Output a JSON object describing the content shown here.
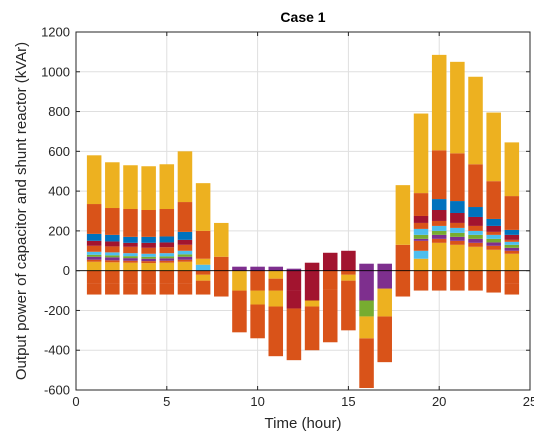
{
  "chart_data": {
    "type": "bar",
    "stacked": true,
    "title": "Case 1",
    "xlabel": "Time (hour)",
    "ylabel": "Output power of capacitor and shunt reactor (kVAr)",
    "xlim": [
      0,
      25
    ],
    "ylim": [
      -600,
      1200
    ],
    "xticks": [
      0,
      5,
      10,
      15,
      20,
      25
    ],
    "yticks": [
      -600,
      -400,
      -200,
      0,
      200,
      400,
      600,
      800,
      1000,
      1200
    ],
    "grid": true,
    "colors": [
      "#edb120",
      "#d95319",
      "#0072bd",
      "#a2142f",
      "#4dbeee",
      "#77ac30",
      "#7e2f8e"
    ],
    "bars": [
      {
        "x": 1,
        "segments": [
          [
            -120,
            -65,
            1
          ],
          [
            -65,
            0,
            1
          ],
          [
            0,
            45,
            0
          ],
          [
            45,
            55,
            1
          ],
          [
            55,
            70,
            6
          ],
          [
            70,
            80,
            5
          ],
          [
            80,
            95,
            4
          ],
          [
            95,
            125,
            1
          ],
          [
            125,
            150,
            3
          ],
          [
            150,
            185,
            2
          ],
          [
            185,
            335,
            1
          ],
          [
            335,
            580,
            0
          ]
        ]
      },
      {
        "x": 2,
        "segments": [
          [
            -120,
            -65,
            1
          ],
          [
            -65,
            0,
            1
          ],
          [
            0,
            42,
            0
          ],
          [
            42,
            52,
            1
          ],
          [
            52,
            67,
            6
          ],
          [
            67,
            77,
            5
          ],
          [
            77,
            92,
            4
          ],
          [
            92,
            122,
            1
          ],
          [
            122,
            147,
            3
          ],
          [
            147,
            180,
            2
          ],
          [
            180,
            315,
            1
          ],
          [
            315,
            545,
            0
          ]
        ]
      },
      {
        "x": 3,
        "segments": [
          [
            -120,
            -65,
            1
          ],
          [
            -65,
            0,
            1
          ],
          [
            0,
            40,
            0
          ],
          [
            40,
            50,
            1
          ],
          [
            50,
            63,
            6
          ],
          [
            63,
            73,
            5
          ],
          [
            73,
            88,
            4
          ],
          [
            88,
            120,
            1
          ],
          [
            120,
            140,
            3
          ],
          [
            140,
            170,
            2
          ],
          [
            170,
            310,
            1
          ],
          [
            310,
            530,
            0
          ]
        ]
      },
      {
        "x": 4,
        "segments": [
          [
            -120,
            -65,
            1
          ],
          [
            -65,
            0,
            1
          ],
          [
            0,
            38,
            0
          ],
          [
            38,
            48,
            1
          ],
          [
            48,
            60,
            6
          ],
          [
            60,
            70,
            5
          ],
          [
            70,
            85,
            4
          ],
          [
            85,
            115,
            1
          ],
          [
            115,
            140,
            3
          ],
          [
            140,
            170,
            2
          ],
          [
            170,
            305,
            1
          ],
          [
            305,
            525,
            0
          ]
        ]
      },
      {
        "x": 5,
        "segments": [
          [
            -120,
            -65,
            1
          ],
          [
            -65,
            0,
            1
          ],
          [
            0,
            40,
            0
          ],
          [
            40,
            50,
            1
          ],
          [
            50,
            62,
            6
          ],
          [
            62,
            72,
            5
          ],
          [
            72,
            88,
            4
          ],
          [
            88,
            118,
            1
          ],
          [
            118,
            142,
            3
          ],
          [
            142,
            172,
            2
          ],
          [
            172,
            310,
            1
          ],
          [
            310,
            535,
            0
          ]
        ]
      },
      {
        "x": 6,
        "segments": [
          [
            -120,
            -65,
            1
          ],
          [
            -65,
            0,
            1
          ],
          [
            0,
            45,
            0
          ],
          [
            45,
            55,
            1
          ],
          [
            55,
            70,
            6
          ],
          [
            70,
            82,
            5
          ],
          [
            82,
            100,
            4
          ],
          [
            100,
            130,
            1
          ],
          [
            130,
            155,
            3
          ],
          [
            155,
            195,
            2
          ],
          [
            195,
            345,
            1
          ],
          [
            345,
            600,
            0
          ]
        ]
      },
      {
        "x": 7,
        "segments": [
          [
            -120,
            -50,
            1
          ],
          [
            -50,
            -20,
            0
          ],
          [
            -20,
            0,
            1
          ],
          [
            0,
            30,
            4
          ],
          [
            30,
            60,
            0
          ],
          [
            60,
            200,
            1
          ],
          [
            200,
            440,
            0
          ]
        ]
      },
      {
        "x": 8,
        "segments": [
          [
            -130,
            0,
            1
          ],
          [
            0,
            70,
            1
          ],
          [
            70,
            240,
            0
          ]
        ]
      },
      {
        "x": 9,
        "segments": [
          [
            -310,
            -100,
            1
          ],
          [
            -100,
            0,
            0
          ],
          [
            0,
            20,
            6
          ]
        ]
      },
      {
        "x": 10,
        "segments": [
          [
            -340,
            -170,
            1
          ],
          [
            -170,
            -100,
            0
          ],
          [
            -100,
            0,
            1
          ],
          [
            0,
            20,
            6
          ]
        ]
      },
      {
        "x": 11,
        "segments": [
          [
            -430,
            -180,
            1
          ],
          [
            -180,
            -100,
            0
          ],
          [
            -100,
            -40,
            1
          ],
          [
            -40,
            0,
            0
          ],
          [
            0,
            20,
            6
          ]
        ]
      },
      {
        "x": 12,
        "segments": [
          [
            -450,
            -190,
            1
          ],
          [
            -190,
            -100,
            3
          ],
          [
            -100,
            0,
            3
          ],
          [
            0,
            10,
            6
          ]
        ]
      },
      {
        "x": 13,
        "segments": [
          [
            -400,
            -180,
            1
          ],
          [
            -180,
            -150,
            0
          ],
          [
            -150,
            0,
            3
          ],
          [
            0,
            40,
            3
          ]
        ]
      },
      {
        "x": 14,
        "segments": [
          [
            -360,
            -95,
            1
          ],
          [
            -95,
            0,
            1
          ],
          [
            0,
            90,
            3
          ]
        ]
      },
      {
        "x": 15,
        "segments": [
          [
            -300,
            -150,
            1
          ],
          [
            -150,
            -50,
            1
          ],
          [
            -50,
            -20,
            0
          ],
          [
            -20,
            0,
            1
          ],
          [
            0,
            100,
            3
          ]
        ]
      },
      {
        "x": 16,
        "segments": [
          [
            -590,
            -340,
            1
          ],
          [
            -340,
            -230,
            0
          ],
          [
            -230,
            -150,
            5
          ],
          [
            -150,
            0,
            6
          ],
          [
            0,
            35,
            6
          ]
        ]
      },
      {
        "x": 17,
        "segments": [
          [
            -460,
            -230,
            1
          ],
          [
            -230,
            -90,
            0
          ],
          [
            -90,
            0,
            6
          ],
          [
            0,
            35,
            6
          ]
        ]
      },
      {
        "x": 18,
        "segments": [
          [
            -130,
            0,
            1
          ],
          [
            0,
            130,
            1
          ],
          [
            130,
            430,
            0
          ]
        ]
      },
      {
        "x": 19,
        "segments": [
          [
            -100,
            0,
            1
          ],
          [
            0,
            60,
            0
          ],
          [
            60,
            100,
            4
          ],
          [
            100,
            150,
            1
          ],
          [
            150,
            160,
            6
          ],
          [
            160,
            180,
            5
          ],
          [
            180,
            210,
            4
          ],
          [
            210,
            240,
            1
          ],
          [
            240,
            275,
            3
          ],
          [
            275,
            390,
            1
          ],
          [
            390,
            790,
            0
          ]
        ]
      },
      {
        "x": 20,
        "segments": [
          [
            -100,
            0,
            1
          ],
          [
            0,
            140,
            0
          ],
          [
            140,
            160,
            1
          ],
          [
            160,
            180,
            6
          ],
          [
            180,
            200,
            5
          ],
          [
            200,
            225,
            4
          ],
          [
            225,
            250,
            1
          ],
          [
            250,
            305,
            3
          ],
          [
            305,
            360,
            2
          ],
          [
            360,
            605,
            1
          ],
          [
            605,
            1085,
            0
          ]
        ]
      },
      {
        "x": 21,
        "segments": [
          [
            -100,
            0,
            1
          ],
          [
            0,
            130,
            0
          ],
          [
            130,
            150,
            1
          ],
          [
            150,
            170,
            6
          ],
          [
            170,
            190,
            5
          ],
          [
            190,
            215,
            4
          ],
          [
            215,
            240,
            1
          ],
          [
            240,
            290,
            3
          ],
          [
            290,
            350,
            2
          ],
          [
            350,
            590,
            1
          ],
          [
            590,
            1050,
            0
          ]
        ]
      },
      {
        "x": 22,
        "segments": [
          [
            -100,
            0,
            1
          ],
          [
            0,
            120,
            0
          ],
          [
            120,
            140,
            1
          ],
          [
            140,
            160,
            6
          ],
          [
            160,
            180,
            5
          ],
          [
            180,
            200,
            4
          ],
          [
            200,
            225,
            1
          ],
          [
            225,
            270,
            3
          ],
          [
            270,
            320,
            2
          ],
          [
            320,
            535,
            1
          ],
          [
            535,
            975,
            0
          ]
        ]
      },
      {
        "x": 23,
        "segments": [
          [
            -110,
            0,
            1
          ],
          [
            0,
            105,
            0
          ],
          [
            105,
            125,
            1
          ],
          [
            125,
            142,
            6
          ],
          [
            142,
            160,
            5
          ],
          [
            160,
            180,
            4
          ],
          [
            180,
            195,
            1
          ],
          [
            195,
            225,
            3
          ],
          [
            225,
            260,
            2
          ],
          [
            260,
            450,
            1
          ],
          [
            450,
            795,
            0
          ]
        ]
      },
      {
        "x": 24,
        "segments": [
          [
            -120,
            -65,
            1
          ],
          [
            -65,
            0,
            1
          ],
          [
            0,
            85,
            0
          ],
          [
            85,
            100,
            1
          ],
          [
            100,
            115,
            6
          ],
          [
            115,
            130,
            5
          ],
          [
            130,
            145,
            4
          ],
          [
            145,
            155,
            1
          ],
          [
            155,
            180,
            3
          ],
          [
            180,
            205,
            2
          ],
          [
            205,
            375,
            1
          ],
          [
            375,
            645,
            0
          ]
        ]
      }
    ]
  }
}
